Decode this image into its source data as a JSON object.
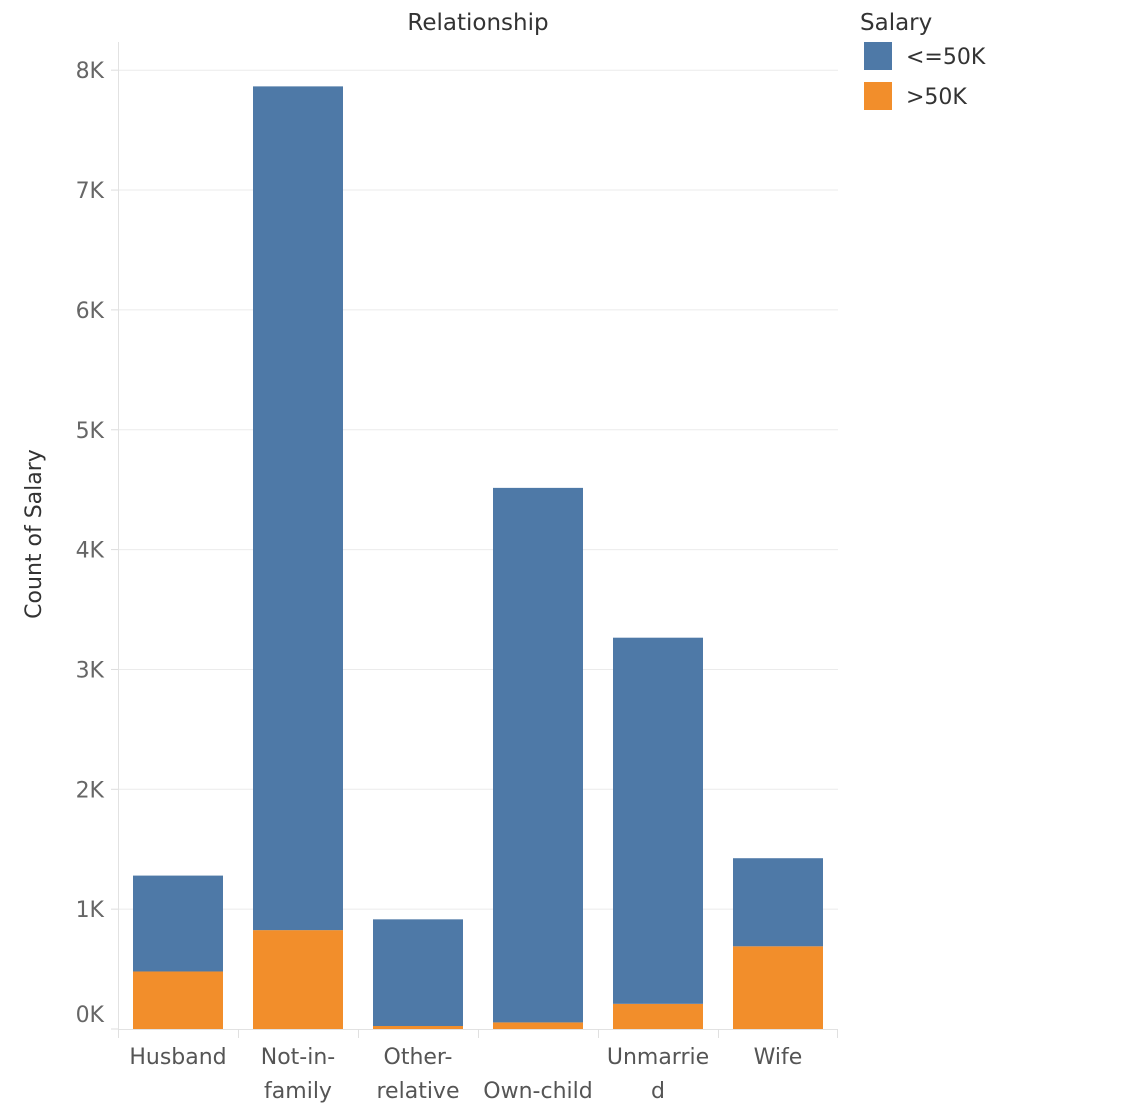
{
  "chart_data": {
    "type": "bar",
    "stacked": true,
    "title": "Relationship",
    "xlabel": "",
    "ylabel": "Count of Salary",
    "ylim": [
      0,
      8300
    ],
    "y_ticks": [
      {
        "value": 0,
        "label": "0K"
      },
      {
        "value": 1000,
        "label": "1K"
      },
      {
        "value": 2000,
        "label": "2K"
      },
      {
        "value": 3000,
        "label": "3K"
      },
      {
        "value": 4000,
        "label": "4K"
      },
      {
        "value": 5000,
        "label": "5K"
      },
      {
        "value": 6000,
        "label": "6K"
      },
      {
        "value": 7000,
        "label": "7K"
      },
      {
        "value": 8000,
        "label": "8K"
      }
    ],
    "categories": [
      {
        "name": "Husband",
        "lines": [
          "Husband"
        ]
      },
      {
        "name": "Not-in-family",
        "lines": [
          "Not-in-",
          "family"
        ]
      },
      {
        "name": "Other-relative",
        "lines": [
          "Other-",
          "relative"
        ]
      },
      {
        "name": "Own-child",
        "lines": [
          "",
          "Own-child"
        ]
      },
      {
        "name": "Unmarried",
        "lines": [
          "Unmarrie",
          "d"
        ]
      },
      {
        "name": "Wife",
        "lines": [
          "Wife"
        ]
      }
    ],
    "series": [
      {
        "name": ">50K",
        "color": "#f28e2b",
        "values": [
          480,
          825,
          25,
          55,
          210,
          690
        ]
      },
      {
        "name": "<=50K",
        "color": "#4e79a7",
        "values": [
          800,
          7040,
          890,
          4460,
          3055,
          735
        ]
      }
    ],
    "grid": true,
    "legend": {
      "title": "Salary",
      "position": "top-right",
      "items": [
        {
          "label": "<=50K",
          "color": "#4e79a7"
        },
        {
          "label": ">50K",
          "color": "#f28e2b"
        }
      ]
    }
  }
}
